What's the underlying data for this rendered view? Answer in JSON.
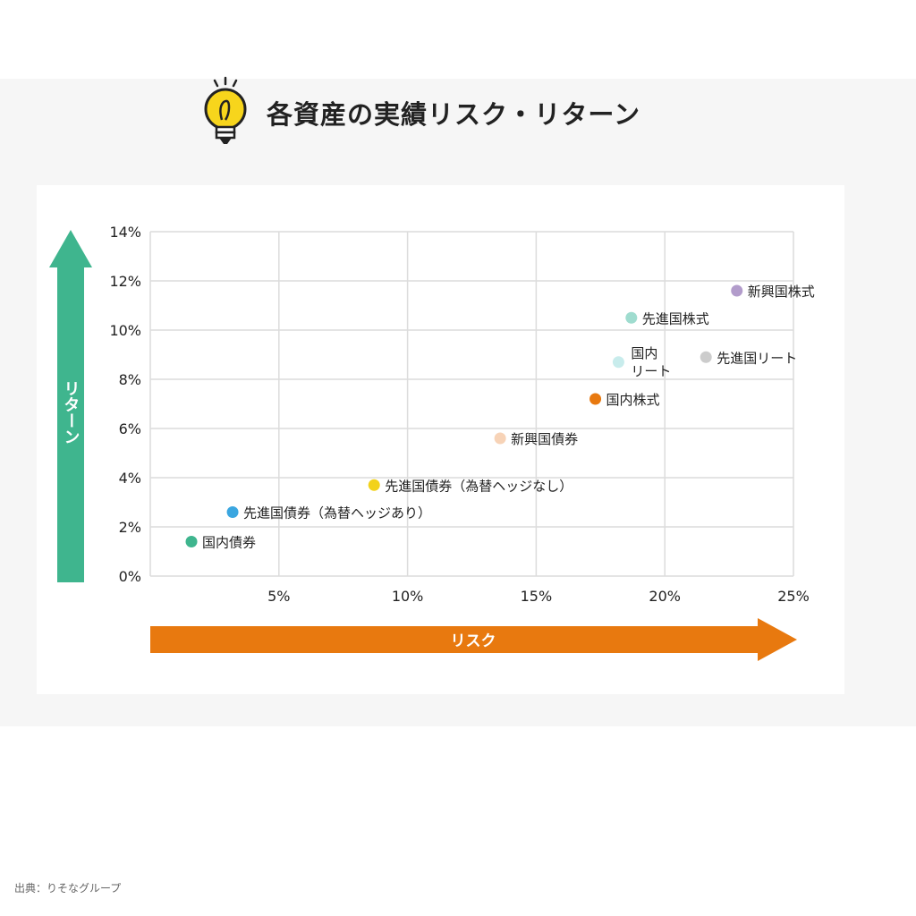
{
  "page": {
    "title": "各資産の実績リスク・リターン",
    "source": "出典：りそなグループ"
  },
  "chart_data": {
    "type": "scatter",
    "title": "各資産の実績リスク・リターン",
    "xlabel": "リスク",
    "ylabel": "リターン",
    "xlim": [
      0,
      25
    ],
    "ylim": [
      0,
      14
    ],
    "x_ticks": [
      "5%",
      "10%",
      "15%",
      "20%",
      "25%"
    ],
    "y_ticks": [
      "0%",
      "2%",
      "4%",
      "6%",
      "8%",
      "10%",
      "12%",
      "14%"
    ],
    "grid": true,
    "points": [
      {
        "label": "国内債券",
        "x": 1.6,
        "y": 1.4,
        "color": "#3fb58e"
      },
      {
        "label": "先進国債券（為替ヘッジあり）",
        "x": 3.2,
        "y": 2.6,
        "color": "#3aa6e0"
      },
      {
        "label": "先進国債券（為替ヘッジなし）",
        "x": 8.7,
        "y": 3.7,
        "color": "#f2d21b"
      },
      {
        "label": "新興国債券",
        "x": 13.6,
        "y": 5.6,
        "color": "#f7d3b7"
      },
      {
        "label": "国内株式",
        "x": 17.3,
        "y": 7.2,
        "color": "#e8790f"
      },
      {
        "label": "国内リート",
        "x": 18.2,
        "y": 8.7,
        "color": "#c8ecec"
      },
      {
        "label": "先進国株式",
        "x": 18.7,
        "y": 10.5,
        "color": "#9fdccf"
      },
      {
        "label": "先進国リート",
        "x": 21.6,
        "y": 8.9,
        "color": "#cccccc"
      },
      {
        "label": "新興国株式",
        "x": 22.8,
        "y": 11.6,
        "color": "#b29ccb"
      }
    ],
    "colors": {
      "y_arrow": "#3fb58e",
      "x_arrow": "#e8790f",
      "grid": "#dcdcdc",
      "bulb": "#f7d51c"
    }
  }
}
